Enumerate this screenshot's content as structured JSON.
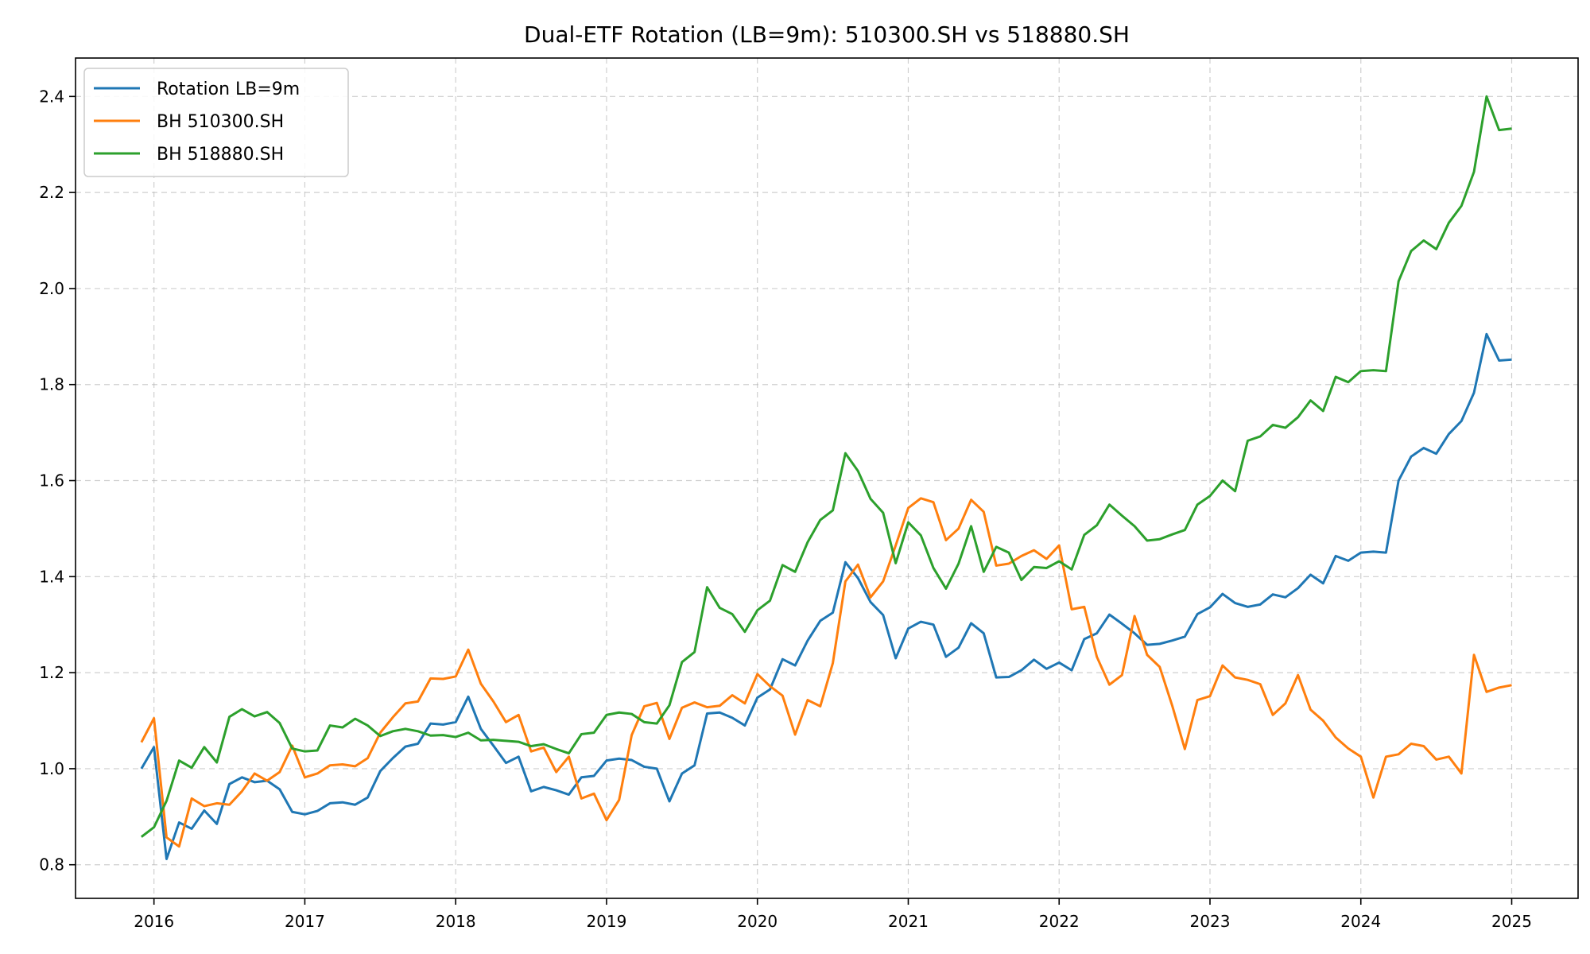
{
  "chart_data": {
    "type": "line",
    "title": "Dual-ETF Rotation (LB=9m): 510300.SH vs 518880.SH",
    "xlabel": "",
    "ylabel": "",
    "x_start": "2015-12",
    "x_ticks": [
      "2016",
      "2017",
      "2018",
      "2019",
      "2020",
      "2021",
      "2022",
      "2023",
      "2024",
      "2025"
    ],
    "y_ticks": [
      "0.8",
      "1.0",
      "1.2",
      "1.4",
      "1.6",
      "1.8",
      "2.0",
      "2.2",
      "2.4"
    ],
    "xlim": [
      2015.48,
      2025.44
    ],
    "ylim": [
      0.73,
      2.48
    ],
    "grid": true,
    "legend_position": "top-left",
    "series": [
      {
        "name": "Rotation LB=9m",
        "color": "#1f77b4",
        "values": [
          1.0,
          1.045,
          0.812,
          0.888,
          0.875,
          0.913,
          0.885,
          0.968,
          0.982,
          0.972,
          0.975,
          0.957,
          0.91,
          0.905,
          0.912,
          0.928,
          0.93,
          0.925,
          0.94,
          0.995,
          1.022,
          1.046,
          1.052,
          1.094,
          1.092,
          1.097,
          1.15,
          1.083,
          1.048,
          1.012,
          1.025,
          0.953,
          0.962,
          0.955,
          0.946,
          0.982,
          0.985,
          1.017,
          1.021,
          1.018,
          1.004,
          1.0,
          0.932,
          0.99,
          1.007,
          1.115,
          1.117,
          1.106,
          1.09,
          1.148,
          1.165,
          1.228,
          1.215,
          1.267,
          1.308,
          1.325,
          1.43,
          1.397,
          1.347,
          1.32,
          1.23,
          1.292,
          1.306,
          1.3,
          1.233,
          1.252,
          1.303,
          1.282,
          1.19,
          1.191,
          1.205,
          1.227,
          1.208,
          1.221,
          1.205,
          1.27,
          1.282,
          1.321,
          1.302,
          1.282,
          1.258,
          1.26,
          1.267,
          1.275,
          1.322,
          1.336,
          1.364,
          1.345,
          1.337,
          1.342,
          1.363,
          1.357,
          1.376,
          1.404,
          1.386,
          1.443,
          1.433,
          1.45,
          1.452,
          1.45,
          1.6,
          1.65,
          1.668,
          1.656,
          1.697,
          1.724,
          1.783,
          1.905,
          1.85,
          1.852
        ]
      },
      {
        "name": "BH 510300.SH",
        "color": "#ff7f0e",
        "values": [
          1.055,
          1.105,
          0.857,
          0.838,
          0.938,
          0.922,
          0.928,
          0.925,
          0.953,
          0.99,
          0.975,
          0.993,
          1.048,
          0.982,
          0.99,
          1.007,
          1.009,
          1.005,
          1.022,
          1.075,
          1.107,
          1.136,
          1.14,
          1.188,
          1.187,
          1.192,
          1.248,
          1.177,
          1.14,
          1.097,
          1.112,
          1.036,
          1.044,
          0.993,
          1.025,
          0.938,
          0.948,
          0.893,
          0.935,
          1.07,
          1.13,
          1.137,
          1.062,
          1.127,
          1.138,
          1.128,
          1.131,
          1.153,
          1.136,
          1.197,
          1.172,
          1.152,
          1.071,
          1.143,
          1.13,
          1.22,
          1.39,
          1.425,
          1.357,
          1.39,
          1.465,
          1.543,
          1.563,
          1.555,
          1.476,
          1.5,
          1.56,
          1.535,
          1.423,
          1.427,
          1.443,
          1.455,
          1.437,
          1.465,
          1.332,
          1.337,
          1.233,
          1.175,
          1.195,
          1.318,
          1.237,
          1.212,
          1.131,
          1.041,
          1.143,
          1.151,
          1.215,
          1.19,
          1.185,
          1.176,
          1.112,
          1.136,
          1.195,
          1.123,
          1.1,
          1.065,
          1.042,
          1.025,
          0.94,
          1.025,
          1.03,
          1.052,
          1.047,
          1.019,
          1.025,
          0.99,
          1.237,
          1.16,
          1.169,
          1.174
        ]
      },
      {
        "name": "BH 518880.SH",
        "color": "#2ca02c",
        "values": [
          0.858,
          0.878,
          0.933,
          1.017,
          1.002,
          1.045,
          1.013,
          1.108,
          1.124,
          1.109,
          1.118,
          1.095,
          1.042,
          1.036,
          1.038,
          1.09,
          1.086,
          1.104,
          1.09,
          1.068,
          1.078,
          1.083,
          1.078,
          1.069,
          1.07,
          1.066,
          1.075,
          1.059,
          1.06,
          1.058,
          1.056,
          1.047,
          1.051,
          1.041,
          1.032,
          1.072,
          1.075,
          1.112,
          1.117,
          1.114,
          1.097,
          1.094,
          1.132,
          1.222,
          1.243,
          1.378,
          1.335,
          1.322,
          1.285,
          1.33,
          1.35,
          1.424,
          1.41,
          1.472,
          1.518,
          1.538,
          1.657,
          1.62,
          1.562,
          1.533,
          1.428,
          1.513,
          1.486,
          1.418,
          1.375,
          1.427,
          1.505,
          1.41,
          1.462,
          1.45,
          1.393,
          1.42,
          1.418,
          1.432,
          1.415,
          1.487,
          1.507,
          1.55,
          1.527,
          1.505,
          1.475,
          1.478,
          1.488,
          1.497,
          1.55,
          1.568,
          1.6,
          1.578,
          1.683,
          1.692,
          1.716,
          1.71,
          1.732,
          1.767,
          1.745,
          1.816,
          1.805,
          1.828,
          1.83,
          1.828,
          2.015,
          2.078,
          2.1,
          2.082,
          2.137,
          2.172,
          2.243,
          2.4,
          2.33,
          2.333
        ]
      }
    ]
  }
}
